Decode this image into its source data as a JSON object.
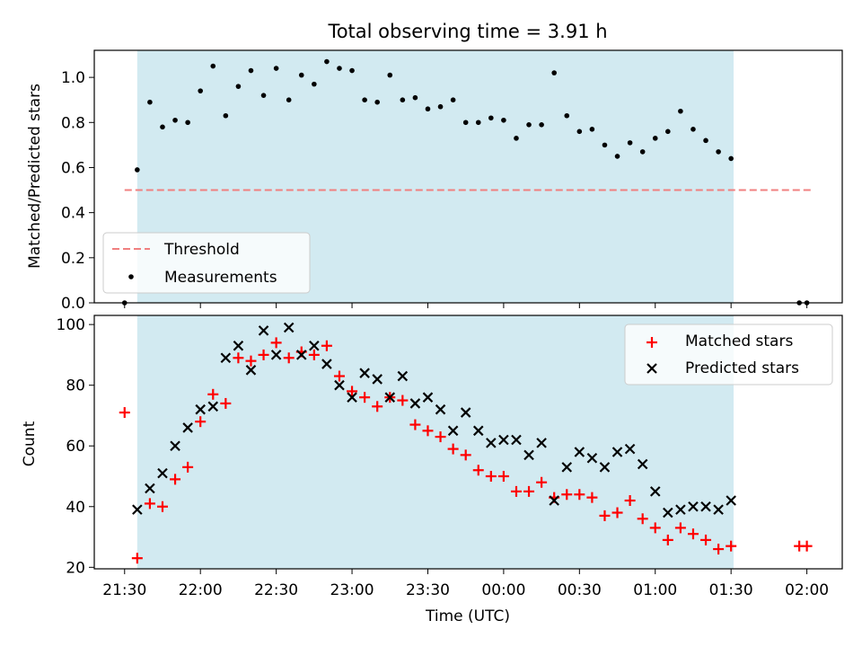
{
  "chart_data": [
    {
      "type": "scatter",
      "title": "Total observing time = 3.91 h",
      "ylabel": "Matched/Predicted stars",
      "xlabel": "",
      "ylim": [
        0,
        1.12
      ],
      "yticks": [
        0.0,
        0.2,
        0.4,
        0.6,
        0.8,
        1.0
      ],
      "grid": false,
      "legend_position": "lower-left",
      "shaded_interval": [
        "21:35",
        "01:31"
      ],
      "shade_color": "#add8e6",
      "threshold": {
        "name": "Threshold",
        "value": 0.5,
        "x_range": [
          "21:30",
          "02:02"
        ],
        "color": "#f08080",
        "style": "dashed"
      },
      "series": [
        {
          "name": "Measurements",
          "color": "#000000",
          "marker": "dot",
          "points": [
            [
              "21:30",
              0.0
            ],
            [
              "21:35",
              0.59
            ],
            [
              "21:40",
              0.89
            ],
            [
              "21:45",
              0.78
            ],
            [
              "21:50",
              0.81
            ],
            [
              "21:55",
              0.8
            ],
            [
              "22:00",
              0.94
            ],
            [
              "22:05",
              1.05
            ],
            [
              "22:10",
              0.83
            ],
            [
              "22:15",
              0.96
            ],
            [
              "22:20",
              1.03
            ],
            [
              "22:25",
              0.92
            ],
            [
              "22:30",
              1.04
            ],
            [
              "22:35",
              0.9
            ],
            [
              "22:40",
              1.01
            ],
            [
              "22:45",
              0.97
            ],
            [
              "22:50",
              1.07
            ],
            [
              "22:55",
              1.04
            ],
            [
              "23:00",
              1.03
            ],
            [
              "23:05",
              0.9
            ],
            [
              "23:10",
              0.89
            ],
            [
              "23:15",
              1.01
            ],
            [
              "23:20",
              0.9
            ],
            [
              "23:25",
              0.91
            ],
            [
              "23:30",
              0.86
            ],
            [
              "23:35",
              0.87
            ],
            [
              "23:40",
              0.9
            ],
            [
              "23:45",
              0.8
            ],
            [
              "23:50",
              0.8
            ],
            [
              "23:55",
              0.82
            ],
            [
              "00:00",
              0.81
            ],
            [
              "00:05",
              0.73
            ],
            [
              "00:10",
              0.79
            ],
            [
              "00:15",
              0.79
            ],
            [
              "00:20",
              1.02
            ],
            [
              "00:25",
              0.83
            ],
            [
              "00:30",
              0.76
            ],
            [
              "00:35",
              0.77
            ],
            [
              "00:40",
              0.7
            ],
            [
              "00:45",
              0.65
            ],
            [
              "00:50",
              0.71
            ],
            [
              "00:55",
              0.67
            ],
            [
              "01:00",
              0.73
            ],
            [
              "01:05",
              0.76
            ],
            [
              "01:10",
              0.85
            ],
            [
              "01:15",
              0.77
            ],
            [
              "01:20",
              0.72
            ],
            [
              "01:25",
              0.67
            ],
            [
              "01:30",
              0.64
            ],
            [
              "01:57",
              0.0
            ],
            [
              "02:00",
              0.0
            ]
          ]
        }
      ]
    },
    {
      "type": "scatter",
      "title": "",
      "ylabel": "Count",
      "xlabel": "Time (UTC)",
      "ylim": [
        19.5,
        103
      ],
      "yticks": [
        20,
        40,
        60,
        80,
        100
      ],
      "xticks": [
        "21:30",
        "22:00",
        "22:30",
        "23:00",
        "23:30",
        "00:00",
        "00:30",
        "01:00",
        "01:30",
        "02:00"
      ],
      "x_range": [
        "21:18",
        "02:14"
      ],
      "grid": false,
      "legend_position": "upper-right",
      "shaded_interval": [
        "21:35",
        "01:31"
      ],
      "shade_color": "#add8e6",
      "series": [
        {
          "name": "Matched stars",
          "color": "#ff0000",
          "marker": "plus",
          "points": [
            [
              "21:30",
              71
            ],
            [
              "21:35",
              23
            ],
            [
              "21:40",
              41
            ],
            [
              "21:45",
              40
            ],
            [
              "21:50",
              49
            ],
            [
              "21:55",
              53
            ],
            [
              "22:00",
              68
            ],
            [
              "22:05",
              77
            ],
            [
              "22:10",
              74
            ],
            [
              "22:15",
              89
            ],
            [
              "22:20",
              88
            ],
            [
              "22:25",
              90
            ],
            [
              "22:30",
              94
            ],
            [
              "22:35",
              89
            ],
            [
              "22:40",
              91
            ],
            [
              "22:45",
              90
            ],
            [
              "22:50",
              93
            ],
            [
              "22:55",
              83
            ],
            [
              "23:00",
              78
            ],
            [
              "23:05",
              76
            ],
            [
              "23:10",
              73
            ],
            [
              "23:15",
              76
            ],
            [
              "23:20",
              75
            ],
            [
              "23:25",
              67
            ],
            [
              "23:30",
              65
            ],
            [
              "23:35",
              63
            ],
            [
              "23:40",
              59
            ],
            [
              "23:45",
              57
            ],
            [
              "23:50",
              52
            ],
            [
              "23:55",
              50
            ],
            [
              "00:00",
              50
            ],
            [
              "00:05",
              45
            ],
            [
              "00:10",
              45
            ],
            [
              "00:15",
              48
            ],
            [
              "00:20",
              43
            ],
            [
              "00:25",
              44
            ],
            [
              "00:30",
              44
            ],
            [
              "00:35",
              43
            ],
            [
              "00:40",
              37
            ],
            [
              "00:45",
              38
            ],
            [
              "00:50",
              42
            ],
            [
              "00:55",
              36
            ],
            [
              "01:00",
              33
            ],
            [
              "01:05",
              29
            ],
            [
              "01:10",
              33
            ],
            [
              "01:15",
              31
            ],
            [
              "01:20",
              29
            ],
            [
              "01:25",
              26
            ],
            [
              "01:30",
              27
            ],
            [
              "01:57",
              27
            ],
            [
              "02:00",
              27
            ]
          ]
        },
        {
          "name": "Predicted stars",
          "color": "#000000",
          "marker": "x",
          "points": [
            [
              "21:35",
              39
            ],
            [
              "21:40",
              46
            ],
            [
              "21:45",
              51
            ],
            [
              "21:50",
              60
            ],
            [
              "21:55",
              66
            ],
            [
              "22:00",
              72
            ],
            [
              "22:05",
              73
            ],
            [
              "22:10",
              89
            ],
            [
              "22:15",
              93
            ],
            [
              "22:20",
              85
            ],
            [
              "22:25",
              98
            ],
            [
              "22:30",
              90
            ],
            [
              "22:35",
              99
            ],
            [
              "22:40",
              90
            ],
            [
              "22:45",
              93
            ],
            [
              "22:50",
              87
            ],
            [
              "22:55",
              80
            ],
            [
              "23:00",
              76
            ],
            [
              "23:05",
              84
            ],
            [
              "23:10",
              82
            ],
            [
              "23:15",
              76
            ],
            [
              "23:20",
              83
            ],
            [
              "23:25",
              74
            ],
            [
              "23:30",
              76
            ],
            [
              "23:35",
              72
            ],
            [
              "23:40",
              65
            ],
            [
              "23:45",
              71
            ],
            [
              "23:50",
              65
            ],
            [
              "23:55",
              61
            ],
            [
              "00:00",
              62
            ],
            [
              "00:05",
              62
            ],
            [
              "00:10",
              57
            ],
            [
              "00:15",
              61
            ],
            [
              "00:20",
              42
            ],
            [
              "00:25",
              53
            ],
            [
              "00:30",
              58
            ],
            [
              "00:35",
              56
            ],
            [
              "00:40",
              53
            ],
            [
              "00:45",
              58
            ],
            [
              "00:50",
              59
            ],
            [
              "00:55",
              54
            ],
            [
              "01:00",
              45
            ],
            [
              "01:05",
              38
            ],
            [
              "01:10",
              39
            ],
            [
              "01:15",
              40
            ],
            [
              "01:20",
              40
            ],
            [
              "01:25",
              39
            ],
            [
              "01:30",
              42
            ]
          ]
        }
      ]
    }
  ]
}
